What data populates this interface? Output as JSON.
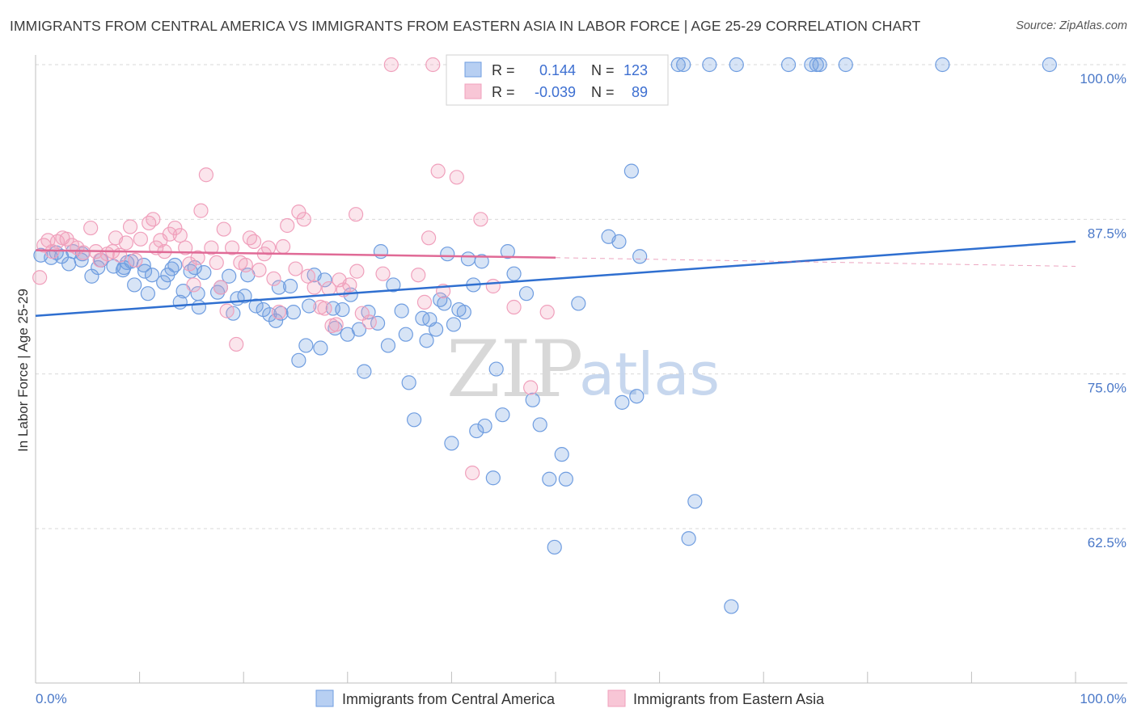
{
  "title": "IMMIGRANTS FROM CENTRAL AMERICA VS IMMIGRANTS FROM EASTERN ASIA IN LABOR FORCE | AGE 25-29 CORRELATION CHART",
  "source": "Source: ZipAtlas.com",
  "watermark": {
    "zip": "ZIP",
    "atlas": "atlas"
  },
  "colors": {
    "blue": "#6f9de0",
    "blue_line": "#2f6fd0",
    "pink": "#f0a0bc",
    "pink_line": "#e06a96",
    "grid": "#d9d9d9",
    "tick_text": "#4a78c8"
  },
  "stats_box": {
    "rows": [
      {
        "r_label": "R =",
        "r_value": "0.144",
        "n_label": "N =",
        "n_value": "123"
      },
      {
        "r_label": "R =",
        "r_value": "-0.039",
        "n_label": "N =",
        "n_value": "89"
      }
    ]
  },
  "chart_data": {
    "type": "scatter",
    "title": "IMMIGRANTS FROM CENTRAL AMERICA VS IMMIGRANTS FROM EASTERN ASIA IN LABOR FORCE | AGE 25-29 CORRELATION CHART",
    "xlabel": "",
    "ylabel": "In Labor Force | Age 25-29",
    "xlim": [
      0,
      100
    ],
    "ylim": [
      50.5,
      101.5
    ],
    "x_tick_labels": [
      "0.0%",
      "100.0%"
    ],
    "y_ticks": [
      62.5,
      75.0,
      87.5,
      100.0
    ],
    "y_tick_labels": [
      "62.5%",
      "75.0%",
      "87.5%",
      "100.0%"
    ],
    "grid": "horizontal dashed",
    "legend_position": "bottom-center",
    "series": [
      {
        "name": "Immigrants from Central America",
        "color": "#6f9de0",
        "trend": {
          "x": [
            0,
            100
          ],
          "y": [
            79.7,
            85.7
          ]
        },
        "points": [
          [
            0.5,
            84.6
          ],
          [
            1.5,
            84.4
          ],
          [
            2.0,
            84.8
          ],
          [
            2.5,
            84.5
          ],
          [
            3.2,
            83.9
          ],
          [
            3.6,
            84.9
          ],
          [
            4.4,
            84.2
          ],
          [
            4.5,
            84.7
          ],
          [
            5.4,
            82.9
          ],
          [
            6.0,
            83.6
          ],
          [
            6.3,
            84.2
          ],
          [
            7.5,
            83.7
          ],
          [
            8.4,
            83.4
          ],
          [
            8.5,
            83.6
          ],
          [
            8.8,
            84.0
          ],
          [
            9.2,
            84.1
          ],
          [
            9.5,
            82.2
          ],
          [
            10.4,
            83.8
          ],
          [
            10.5,
            83.3
          ],
          [
            10.8,
            81.5
          ],
          [
            11.2,
            83.0
          ],
          [
            12.3,
            82.4
          ],
          [
            12.7,
            83.0
          ],
          [
            13.1,
            83.5
          ],
          [
            13.4,
            83.8
          ],
          [
            13.9,
            80.8
          ],
          [
            14.2,
            81.7
          ],
          [
            14.9,
            83.3
          ],
          [
            15.3,
            83.6
          ],
          [
            15.6,
            81.5
          ],
          [
            15.7,
            80.4
          ],
          [
            16.2,
            83.2
          ],
          [
            17.5,
            81.6
          ],
          [
            17.8,
            82.0
          ],
          [
            18.6,
            82.9
          ],
          [
            19.0,
            79.9
          ],
          [
            19.4,
            81.1
          ],
          [
            20.1,
            81.3
          ],
          [
            20.4,
            83.0
          ],
          [
            21.2,
            80.5
          ],
          [
            21.9,
            80.2
          ],
          [
            22.5,
            79.8
          ],
          [
            23.1,
            79.3
          ],
          [
            23.4,
            82.0
          ],
          [
            23.6,
            79.9
          ],
          [
            24.5,
            82.1
          ],
          [
            24.8,
            80.0
          ],
          [
            25.3,
            76.1
          ],
          [
            26.0,
            77.3
          ],
          [
            26.3,
            80.5
          ],
          [
            26.8,
            83.0
          ],
          [
            27.4,
            77.1
          ],
          [
            27.8,
            82.6
          ],
          [
            28.6,
            80.3
          ],
          [
            28.8,
            78.7
          ],
          [
            29.5,
            80.2
          ],
          [
            30.0,
            78.2
          ],
          [
            30.3,
            81.4
          ],
          [
            31.1,
            78.6
          ],
          [
            31.6,
            75.2
          ],
          [
            32.0,
            80.0
          ],
          [
            32.9,
            79.1
          ],
          [
            33.2,
            84.9
          ],
          [
            33.9,
            77.3
          ],
          [
            34.4,
            82.2
          ],
          [
            35.2,
            80.1
          ],
          [
            35.6,
            78.2
          ],
          [
            35.9,
            74.3
          ],
          [
            36.4,
            71.3
          ],
          [
            37.2,
            79.5
          ],
          [
            37.6,
            77.7
          ],
          [
            37.9,
            79.4
          ],
          [
            38.5,
            78.6
          ],
          [
            38.9,
            81.0
          ],
          [
            39.3,
            80.7
          ],
          [
            39.6,
            84.7
          ],
          [
            40.0,
            69.4
          ],
          [
            40.2,
            79.0
          ],
          [
            40.7,
            80.2
          ],
          [
            41.2,
            80.0
          ],
          [
            41.6,
            84.3
          ],
          [
            42.1,
            82.2
          ],
          [
            42.4,
            70.4
          ],
          [
            42.9,
            84.1
          ],
          [
            43.2,
            70.8
          ],
          [
            44.0,
            66.6
          ],
          [
            44.3,
            75.4
          ],
          [
            44.9,
            71.7
          ],
          [
            45.4,
            84.9
          ],
          [
            46.0,
            83.1
          ],
          [
            47.2,
            81.5
          ],
          [
            47.8,
            72.9
          ],
          [
            48.5,
            70.9
          ],
          [
            49.4,
            66.5
          ],
          [
            49.9,
            61.0
          ],
          [
            50.6,
            68.5
          ],
          [
            51.0,
            66.5
          ],
          [
            52.2,
            80.7
          ],
          [
            54.3,
            100.0
          ],
          [
            55.1,
            86.1
          ],
          [
            56.1,
            85.7
          ],
          [
            56.4,
            72.7
          ],
          [
            57.3,
            91.4
          ],
          [
            57.8,
            73.2
          ],
          [
            58.1,
            84.5
          ],
          [
            61.8,
            100.0
          ],
          [
            62.3,
            100.0
          ],
          [
            62.8,
            61.7
          ],
          [
            63.4,
            64.7
          ],
          [
            64.8,
            100.0
          ],
          [
            66.9,
            56.2
          ],
          [
            67.4,
            100.0
          ],
          [
            72.4,
            100.0
          ],
          [
            74.6,
            100.0
          ],
          [
            75.1,
            100.0
          ],
          [
            75.4,
            100.0
          ],
          [
            77.9,
            100.0
          ],
          [
            87.2,
            100.0
          ],
          [
            97.5,
            100.0
          ]
        ]
      },
      {
        "name": "Immigrants from Eastern Asia",
        "color": "#f0a0bc",
        "trend": {
          "x": [
            0,
            50
          ],
          "y": [
            85.0,
            84.4
          ],
          "dashed_extension": {
            "x": [
              50,
              100
            ],
            "y": [
              84.4,
              83.7
            ]
          }
        },
        "points": [
          [
            0.4,
            82.8
          ],
          [
            0.8,
            85.4
          ],
          [
            1.2,
            85.8
          ],
          [
            1.6,
            84.9
          ],
          [
            2.1,
            85.7
          ],
          [
            2.6,
            86.0
          ],
          [
            3.0,
            85.9
          ],
          [
            3.5,
            85.4
          ],
          [
            4.0,
            85.2
          ],
          [
            4.6,
            84.8
          ],
          [
            5.3,
            86.8
          ],
          [
            5.8,
            84.9
          ],
          [
            6.2,
            84.2
          ],
          [
            6.9,
            84.7
          ],
          [
            7.4,
            84.9
          ],
          [
            7.7,
            86.0
          ],
          [
            8.1,
            84.6
          ],
          [
            8.7,
            85.6
          ],
          [
            9.1,
            86.9
          ],
          [
            9.6,
            84.2
          ],
          [
            10.1,
            85.9
          ],
          [
            10.9,
            87.2
          ],
          [
            11.3,
            87.5
          ],
          [
            11.6,
            85.2
          ],
          [
            12.0,
            85.8
          ],
          [
            12.4,
            84.9
          ],
          [
            12.9,
            86.3
          ],
          [
            13.4,
            86.8
          ],
          [
            13.9,
            86.2
          ],
          [
            14.4,
            85.2
          ],
          [
            14.8,
            83.9
          ],
          [
            15.2,
            82.2
          ],
          [
            15.6,
            84.4
          ],
          [
            15.9,
            88.2
          ],
          [
            16.4,
            91.1
          ],
          [
            16.9,
            85.2
          ],
          [
            17.4,
            84.0
          ],
          [
            17.8,
            82.0
          ],
          [
            18.1,
            86.7
          ],
          [
            18.4,
            80.1
          ],
          [
            18.9,
            85.2
          ],
          [
            19.3,
            77.4
          ],
          [
            19.7,
            84.0
          ],
          [
            20.2,
            83.8
          ],
          [
            20.6,
            86.0
          ],
          [
            21.0,
            85.7
          ],
          [
            21.5,
            83.4
          ],
          [
            22.0,
            84.7
          ],
          [
            22.4,
            85.2
          ],
          [
            22.9,
            82.7
          ],
          [
            23.4,
            80.0
          ],
          [
            23.8,
            85.3
          ],
          [
            24.2,
            87.0
          ],
          [
            25.0,
            83.5
          ],
          [
            25.3,
            88.1
          ],
          [
            25.8,
            87.5
          ],
          [
            26.2,
            82.9
          ],
          [
            26.8,
            82.0
          ],
          [
            27.4,
            80.4
          ],
          [
            27.8,
            80.3
          ],
          [
            28.2,
            81.9
          ],
          [
            28.5,
            78.9
          ],
          [
            28.9,
            79.0
          ],
          [
            29.2,
            82.6
          ],
          [
            29.6,
            81.8
          ],
          [
            30.2,
            82.2
          ],
          [
            30.8,
            87.9
          ],
          [
            30.9,
            83.3
          ],
          [
            31.4,
            79.9
          ],
          [
            32.1,
            79.2
          ],
          [
            33.4,
            83.1
          ],
          [
            34.2,
            100.0
          ],
          [
            36.8,
            83.0
          ],
          [
            37.4,
            80.8
          ],
          [
            37.8,
            86.0
          ],
          [
            38.2,
            100.0
          ],
          [
            38.7,
            91.4
          ],
          [
            39.2,
            81.7
          ],
          [
            40.5,
            90.9
          ],
          [
            42.0,
            67.0
          ],
          [
            42.8,
            87.5
          ],
          [
            44.0,
            82.1
          ],
          [
            46.0,
            80.4
          ],
          [
            47.6,
            73.9
          ],
          [
            49.2,
            80.0
          ],
          [
            49.8,
            100.0
          ],
          [
            50.0,
            100.0
          ],
          [
            50.3,
            100.0
          ],
          [
            52.4,
            100.0
          ]
        ]
      }
    ]
  },
  "legend": {
    "items": [
      {
        "label": "Immigrants from Central America"
      },
      {
        "label": "Immigrants from Eastern Asia"
      }
    ]
  }
}
